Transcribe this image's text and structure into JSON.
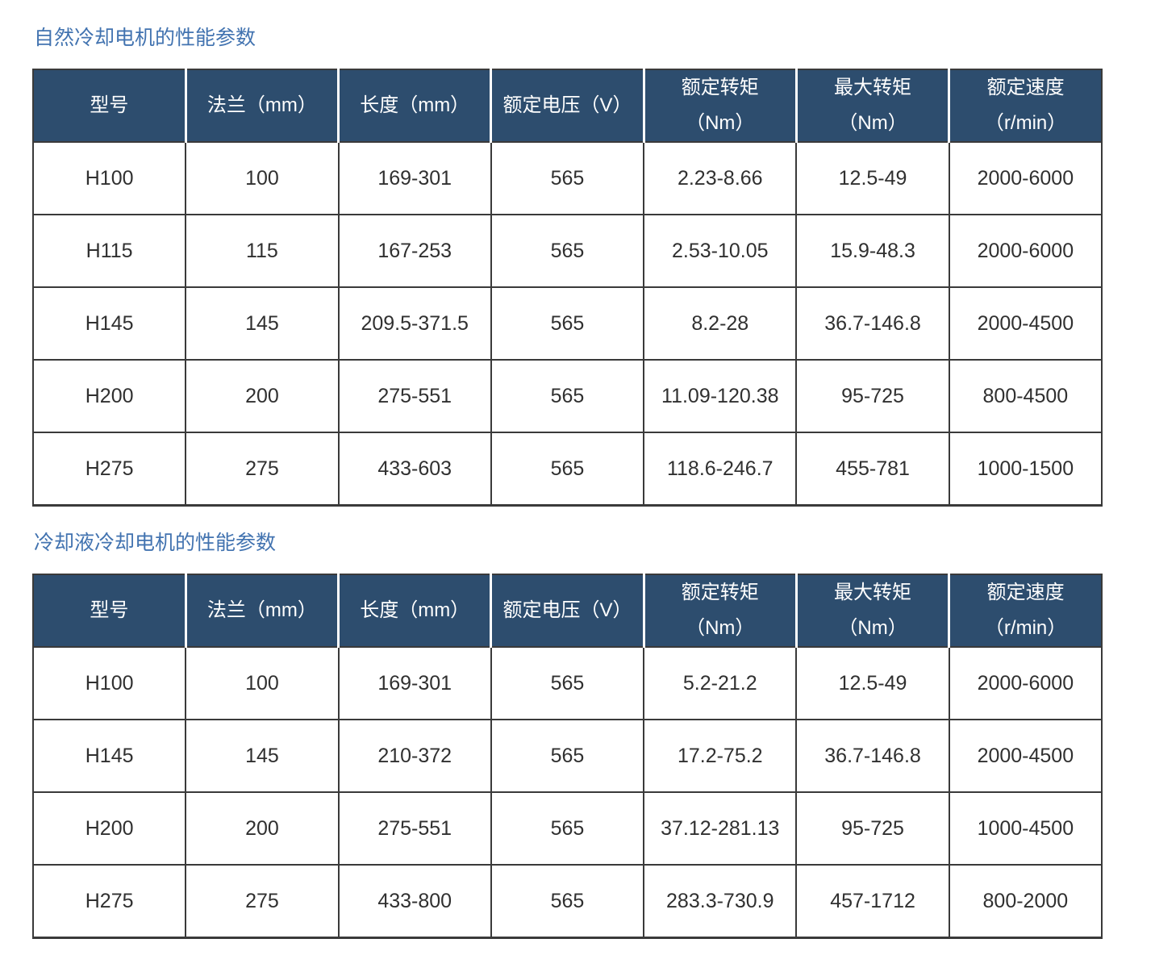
{
  "colors": {
    "title_text": "#4273b0",
    "header_background": "#2d4d6e",
    "header_text": "#ffffff",
    "cell_text": "#303030",
    "grid_border": "#3a3a3a",
    "page_background": "#ffffff"
  },
  "tables": [
    {
      "title": "自然冷却电机的性能参数",
      "columns": [
        {
          "line1": "型号",
          "line2": ""
        },
        {
          "line1": "法兰（mm）",
          "line2": ""
        },
        {
          "line1": "长度（mm）",
          "line2": ""
        },
        {
          "line1": "额定电压（V）",
          "line2": ""
        },
        {
          "line1": "额定转矩",
          "line2": "（Nm）"
        },
        {
          "line1": "最大转矩",
          "line2": "（Nm）"
        },
        {
          "line1": "额定速度",
          "line2": "（r/min）"
        }
      ],
      "rows": [
        [
          "H100",
          "100",
          "169-301",
          "565",
          "2.23-8.66",
          "12.5-49",
          "2000-6000"
        ],
        [
          "H115",
          "115",
          "167-253",
          "565",
          "2.53-10.05",
          "15.9-48.3",
          "2000-6000"
        ],
        [
          "H145",
          "145",
          "209.5-371.5",
          "565",
          "8.2-28",
          "36.7-146.8",
          "2000-4500"
        ],
        [
          "H200",
          "200",
          "275-551",
          "565",
          "11.09-120.38",
          "95-725",
          "800-4500"
        ],
        [
          "H275",
          "275",
          "433-603",
          "565",
          "118.6-246.7",
          "455-781",
          "1000-1500"
        ]
      ]
    },
    {
      "title": "冷却液冷却电机的性能参数",
      "columns": [
        {
          "line1": "型号",
          "line2": ""
        },
        {
          "line1": "法兰（mm）",
          "line2": ""
        },
        {
          "line1": "长度（mm）",
          "line2": ""
        },
        {
          "line1": "额定电压（V）",
          "line2": ""
        },
        {
          "line1": "额定转矩",
          "line2": "（Nm）"
        },
        {
          "line1": "最大转矩",
          "line2": "（Nm）"
        },
        {
          "line1": "额定速度",
          "line2": "（r/min）"
        }
      ],
      "rows": [
        [
          "H100",
          "100",
          "169-301",
          "565",
          "5.2-21.2",
          "12.5-49",
          "2000-6000"
        ],
        [
          "H145",
          "145",
          "210-372",
          "565",
          "17.2-75.2",
          "36.7-146.8",
          "2000-4500"
        ],
        [
          "H200",
          "200",
          "275-551",
          "565",
          "37.12-281.13",
          "95-725",
          "1000-4500"
        ],
        [
          "H275",
          "275",
          "433-800",
          "565",
          "283.3-730.9",
          "457-1712",
          "800-2000"
        ]
      ]
    }
  ]
}
